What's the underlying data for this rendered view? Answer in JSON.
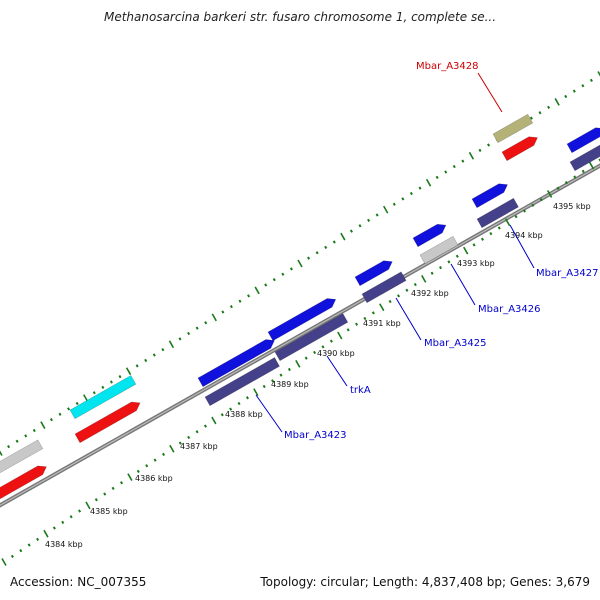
{
  "title": "Methanosarcina barkeri str. fusaro chromosome 1, complete se...",
  "footer": {
    "accession": "Accession: NC_007355",
    "topology": "Topology: circular; Length: 4,837,408 bp; Genes: 3,679"
  },
  "colors": {
    "backbone": "#777777",
    "ticks": "#1a7a1a",
    "gene_label_blue": "#0000cc",
    "gene_label_red": "#cc0000",
    "gene_blue": "#1111dd",
    "gene_navy": "#44408a",
    "gene_cyan": "#00e5ee",
    "gene_red": "#ee1111",
    "gene_gray": "#c8c8c8",
    "gene_olive": "#b5b278"
  },
  "kbp_labels": [
    "4384 kbp",
    "4385 kbp",
    "4386 kbp",
    "4387 kbp",
    "4388 kbp",
    "4389 kbp",
    "4390 kbp",
    "4391 kbp",
    "4392 kbp",
    "4393 kbp",
    "4394 kbp",
    "4395 kbp"
  ],
  "gene_labels": [
    "Mbar_A3423",
    "trkA",
    "Mbar_A3425",
    "Mbar_A3426",
    "Mbar_A3427",
    "Mbar_A3428"
  ]
}
